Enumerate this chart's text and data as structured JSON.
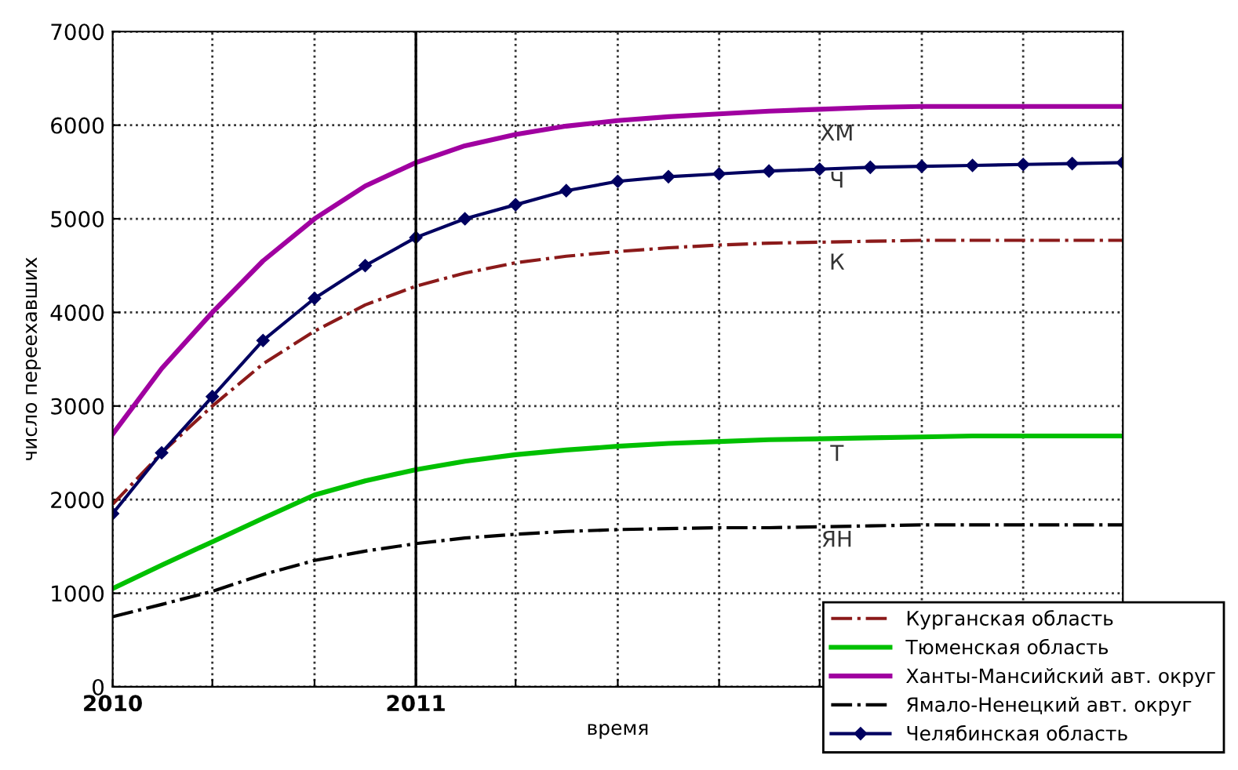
{
  "chart_data": {
    "type": "line",
    "xlabel": "время",
    "ylabel": "число переехавших",
    "x": [
      "2010-01",
      "2010-03",
      "2010-05",
      "2010-07",
      "2010-09",
      "2010-11",
      "2011-01",
      "2011-03",
      "2011-05",
      "2011-07",
      "2011-09",
      "2011-11",
      "2012-01",
      "2012-03",
      "2012-05",
      "2012-07",
      "2012-09",
      "2012-11",
      "2013-01",
      "2013-03",
      "2013-05"
    ],
    "xlim": [
      "2010-01",
      "2013-05"
    ],
    "xticks": [
      {
        "value": "2010-01",
        "label": "2010"
      },
      {
        "value": "2010-05",
        "label": null
      },
      {
        "value": "2010-09",
        "label": null
      },
      {
        "value": "2011-01",
        "label": "2011"
      },
      {
        "value": "2011-05",
        "label": null
      },
      {
        "value": "2011-09",
        "label": null
      },
      {
        "value": "2012-01",
        "label": null
      },
      {
        "value": "2012-05",
        "label": null
      },
      {
        "value": "2012-09",
        "label": null
      },
      {
        "value": "2013-01",
        "label": null
      },
      {
        "value": "2013-05",
        "label": null
      }
    ],
    "ylim": [
      0,
      7000
    ],
    "yticks": [
      0,
      1000,
      2000,
      3000,
      4000,
      5000,
      6000,
      7000
    ],
    "grid": true,
    "legend": "bottom right",
    "ref_lines": [
      {
        "axis": "x",
        "value": "2011-01",
        "label": null,
        "color": "#000000",
        "line_style": "solid"
      }
    ],
    "series": [
      {
        "name": "Курганская область",
        "color": "#8b1a1a",
        "line_style": "dashdot",
        "marker": "none",
        "values": [
          1950,
          2500,
          3000,
          3450,
          3800,
          4080,
          4280,
          4420,
          4530,
          4600,
          4650,
          4690,
          4720,
          4740,
          4750,
          4760,
          4770,
          4770,
          4770,
          4770,
          4770
        ]
      },
      {
        "name": "Тюменская область",
        "color": "#00c000",
        "line_style": "solid",
        "marker": "none",
        "values": [
          1050,
          1300,
          1550,
          1800,
          2050,
          2200,
          2320,
          2410,
          2480,
          2530,
          2570,
          2600,
          2620,
          2640,
          2650,
          2660,
          2670,
          2680,
          2680,
          2680,
          2680
        ]
      },
      {
        "name": "Ханты-Мансийский авт. округ",
        "color": "#a000a0",
        "line_style": "solid",
        "marker": "none",
        "values": [
          2700,
          3400,
          4000,
          4550,
          5000,
          5350,
          5600,
          5780,
          5900,
          5990,
          6050,
          6090,
          6120,
          6150,
          6170,
          6190,
          6200,
          6200,
          6200,
          6200,
          6200
        ]
      },
      {
        "name": "Ямало-Ненецкий авт. округ",
        "color": "#000000",
        "line_style": "dashdot",
        "marker": "none",
        "values": [
          750,
          880,
          1020,
          1200,
          1350,
          1450,
          1530,
          1590,
          1630,
          1660,
          1680,
          1690,
          1700,
          1700,
          1710,
          1720,
          1730,
          1730,
          1730,
          1730,
          1730
        ]
      },
      {
        "name": "Челябинская область",
        "color": "#000060",
        "line_style": "solid",
        "marker": "diamond",
        "values": [
          1850,
          2500,
          3100,
          3700,
          4150,
          4500,
          4800,
          5000,
          5150,
          5300,
          5400,
          5450,
          5480,
          5510,
          5530,
          5550,
          5560,
          5570,
          5580,
          5590,
          5600
        ]
      }
    ],
    "annotations": [
      "ХМ",
      "Ч",
      "К",
      "Т",
      "ЯН"
    ]
  }
}
